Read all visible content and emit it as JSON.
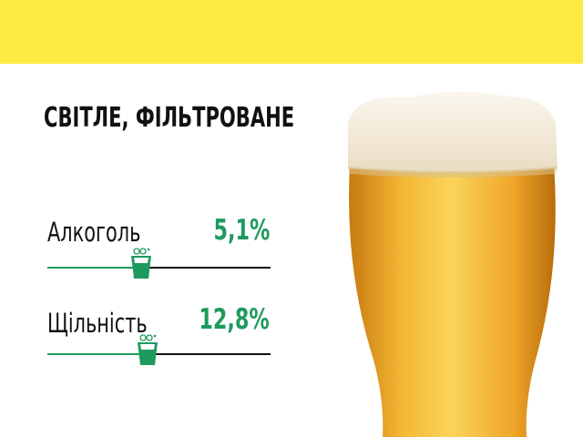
{
  "title": "СВІТЛЕ, ФІЛЬТРОВАНЕ",
  "stats": [
    {
      "label": "Алкоголь",
      "value": "5,1%",
      "level": 0.42
    },
    {
      "label": "Щільність",
      "value": "12,8%",
      "level": 0.45
    }
  ],
  "colors": {
    "accent": "#1f9a5e",
    "band": "#fdeb42",
    "beer": "#f0b030"
  },
  "icons": {
    "marker": "beer-glass-icon",
    "image": "beer-glass-photo"
  }
}
